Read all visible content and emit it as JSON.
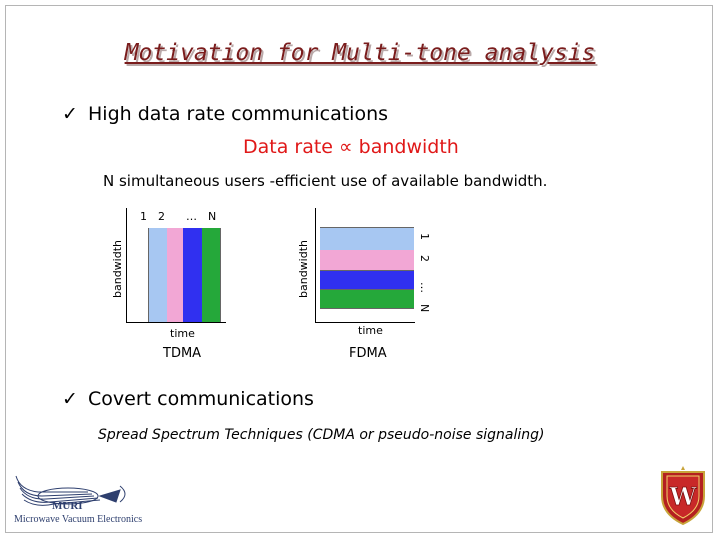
{
  "title": "Motivation for Multi-tone analysis",
  "bullet1": "High data rate communications",
  "data_rate": "Data rate ∝ bandwidth",
  "n_users": "N simultaneous users -efficient use of available bandwidth.",
  "tdma": {
    "ylabel": "bandwidth",
    "xlabel": "time",
    "caption": "TDMA",
    "labels": [
      "1",
      "2",
      "…",
      "N"
    ],
    "colors": [
      "#a7c7f2",
      "#f2a7d5",
      "#3030f0",
      "#25a83a"
    ]
  },
  "fdma": {
    "ylabel": "bandwidth",
    "xlabel": "time",
    "caption": "FDMA",
    "labels": [
      "1",
      "2",
      "…",
      "N"
    ],
    "colors": [
      "#a7c7f2",
      "#f2a7d5",
      "#3030f0",
      "#25a83a"
    ]
  },
  "bullet2": "Covert communications",
  "spread": "Spread Spectrum Techniques (CDMA or pseudo-noise signaling)",
  "logo_left": {
    "name": "MURI",
    "sub": "Microwave Vacuum Electronics"
  },
  "icons": {
    "check": "checkmark-icon",
    "logo": "muri-logo-icon",
    "crest": "wisconsin-crest-icon"
  }
}
